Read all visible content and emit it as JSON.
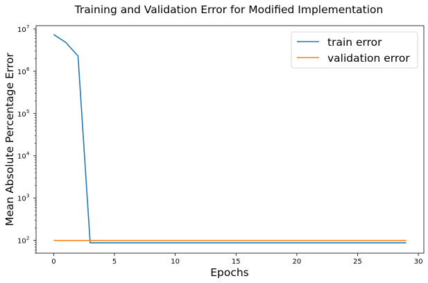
{
  "chart_data": {
    "type": "line",
    "title": "Training and Validation Error for Modified Implementation",
    "xlabel": "Epochs",
    "ylabel": "Mean Absolute Percentage Error",
    "xlim": [
      -1.45,
      30.45
    ],
    "ylim": [
      50,
      12000000
    ],
    "yscale": "log",
    "grid": false,
    "legend_position": "top-right",
    "x_ticks": [
      0,
      5,
      10,
      15,
      20,
      25,
      30
    ],
    "y_ticks": [
      {
        "value": 100,
        "label_base": "10",
        "label_exp": "2"
      },
      {
        "value": 1000,
        "label_base": "10",
        "label_exp": "3"
      },
      {
        "value": 10000,
        "label_base": "10",
        "label_exp": "4"
      },
      {
        "value": 100000,
        "label_base": "10",
        "label_exp": "5"
      },
      {
        "value": 1000000,
        "label_base": "10",
        "label_exp": "6"
      },
      {
        "value": 10000000,
        "label_base": "10",
        "label_exp": "7"
      }
    ],
    "x": [
      0,
      1,
      2,
      3,
      4,
      5,
      6,
      7,
      8,
      9,
      10,
      11,
      12,
      13,
      14,
      15,
      16,
      17,
      18,
      19,
      20,
      21,
      22,
      23,
      24,
      25,
      26,
      27,
      28,
      29
    ],
    "series": [
      {
        "name": "train error",
        "color": "#1f77b4",
        "values": [
          7400000,
          4800000,
          2300000,
          88,
          88,
          88,
          88,
          88,
          88,
          88,
          88,
          88,
          88,
          88,
          88,
          88,
          88,
          88,
          88,
          88,
          88,
          88,
          88,
          88,
          88,
          88,
          88,
          88,
          88,
          88
        ]
      },
      {
        "name": "validation error",
        "color": "#ff7f0e",
        "values": [
          100,
          100,
          100,
          100,
          100,
          100,
          100,
          100,
          100,
          100,
          100,
          100,
          100,
          100,
          100,
          100,
          100,
          100,
          100,
          100,
          100,
          100,
          100,
          100,
          100,
          100,
          100,
          100,
          100,
          100
        ]
      }
    ]
  }
}
